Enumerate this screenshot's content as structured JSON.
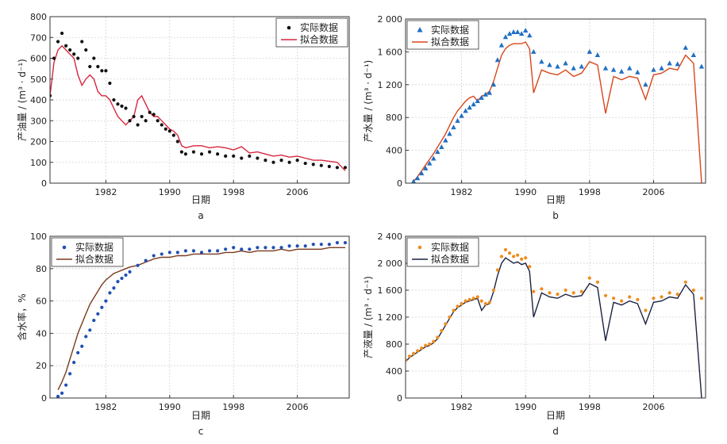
{
  "legend": {
    "actual": "实际数据",
    "fit": "拟合数据"
  },
  "x_axis_label": "日期",
  "x_tick_labels": [
    "1982",
    "1990",
    "1998",
    "2006"
  ],
  "chart_data": [
    {
      "id": "a",
      "type": "scatter",
      "panel_label": "a",
      "ylabel": "产油量 / (m³ · d⁻¹)",
      "xlabel": "日期",
      "xlim": [
        1975,
        2012.5
      ],
      "ylim": [
        0,
        800
      ],
      "y_ticks": [
        "0",
        "100",
        "200",
        "300",
        "400",
        "500",
        "600",
        "700",
        "800"
      ],
      "x_ticks": [
        1982,
        1990,
        1998,
        2006
      ],
      "grid": true,
      "legend_position": "top-right",
      "colors": {
        "actual": "#111111",
        "fit": "#d7263d"
      },
      "series": [
        {
          "name": "实际数据",
          "style": "markers",
          "marker": "dot",
          "x": [
            1975.0,
            1975.5,
            1976.0,
            1976.5,
            1977.0,
            1977.5,
            1978.0,
            1978.5,
            1979.0,
            1979.5,
            1980.0,
            1980.5,
            1981.0,
            1981.5,
            1982.0,
            1982.5,
            1983.0,
            1983.5,
            1984.0,
            1984.5,
            1985.0,
            1985.5,
            1986.0,
            1986.5,
            1987.0,
            1987.5,
            1988.0,
            1988.5,
            1989.0,
            1989.5,
            1990.0,
            1990.5,
            1991.0,
            1991.5,
            1992.0,
            1993.0,
            1994.0,
            1995.0,
            1996.0,
            1997.0,
            1998.0,
            1999.0,
            2000.0,
            2001.0,
            2002.0,
            2003.0,
            2004.0,
            2005.0,
            2006.0,
            2007.0,
            2008.0,
            2009.0,
            2010.0,
            2011.0,
            2012.0
          ],
          "y": [
            420,
            600,
            680,
            720,
            660,
            640,
            620,
            600,
            680,
            640,
            560,
            600,
            560,
            540,
            540,
            480,
            400,
            380,
            370,
            360,
            300,
            320,
            280,
            320,
            300,
            340,
            330,
            300,
            280,
            260,
            250,
            230,
            200,
            150,
            140,
            150,
            140,
            150,
            140,
            130,
            130,
            120,
            130,
            120,
            110,
            100,
            110,
            100,
            110,
            95,
            90,
            85,
            80,
            75,
            75
          ]
        },
        {
          "name": "拟合数据",
          "style": "line",
          "x": [
            1975.0,
            1975.5,
            1976.0,
            1976.5,
            1977.0,
            1977.5,
            1978.0,
            1978.5,
            1979.0,
            1979.5,
            1980.0,
            1980.5,
            1981.0,
            1981.5,
            1982.0,
            1982.5,
            1983.0,
            1983.5,
            1984.0,
            1984.5,
            1985.0,
            1985.5,
            1986.0,
            1986.5,
            1987.0,
            1987.5,
            1988.0,
            1988.5,
            1989.0,
            1989.5,
            1990.0,
            1990.5,
            1991.0,
            1991.5,
            1992.0,
            1993.0,
            1994.0,
            1995.0,
            1996.0,
            1997.0,
            1998.0,
            1999.0,
            2000.0,
            2001.0,
            2002.0,
            2003.0,
            2004.0,
            2005.0,
            2006.0,
            2007.0,
            2008.0,
            2009.0,
            2010.0,
            2011.0,
            2012.0
          ],
          "y": [
            420,
            580,
            640,
            660,
            640,
            620,
            600,
            520,
            470,
            500,
            520,
            500,
            440,
            420,
            420,
            400,
            360,
            320,
            300,
            280,
            300,
            320,
            400,
            420,
            380,
            340,
            320,
            320,
            300,
            280,
            260,
            250,
            230,
            180,
            170,
            180,
            180,
            170,
            175,
            170,
            160,
            175,
            145,
            150,
            140,
            130,
            135,
            125,
            130,
            120,
            110,
            110,
            105,
            100,
            60
          ]
        }
      ]
    },
    {
      "id": "b",
      "type": "scatter",
      "panel_label": "b",
      "ylabel": "产水量 / (m³ · d⁻¹)",
      "xlabel": "日期",
      "xlim": [
        1975,
        2012.5
      ],
      "ylim": [
        0,
        2000
      ],
      "y_ticks": [
        "0",
        "400",
        "800",
        "1 200",
        "1 600",
        "2 000"
      ],
      "x_ticks": [
        1982,
        1990,
        1998,
        2006
      ],
      "grid": true,
      "legend_position": "top-left",
      "colors": {
        "actual": "#1f6fc5",
        "fit": "#d9461b"
      },
      "series": [
        {
          "name": "实际数据",
          "style": "markers",
          "marker": "triangle",
          "x": [
            1976.0,
            1976.5,
            1977.0,
            1977.5,
            1978.0,
            1978.5,
            1979.0,
            1979.5,
            1980.0,
            1980.5,
            1981.0,
            1981.5,
            1982.0,
            1982.5,
            1983.0,
            1983.5,
            1984.0,
            1984.5,
            1985.0,
            1985.5,
            1986.0,
            1986.5,
            1987.0,
            1987.5,
            1988.0,
            1988.5,
            1989.0,
            1989.5,
            1990.0,
            1990.5,
            1991.0,
            1992.0,
            1993.0,
            1994.0,
            1995.0,
            1996.0,
            1997.0,
            1998.0,
            1999.0,
            2000.0,
            2001.0,
            2002.0,
            2003.0,
            2004.0,
            2005.0,
            2006.0,
            2007.0,
            2008.0,
            2009.0,
            2010.0,
            2011.0,
            2012.0
          ],
          "y": [
            20,
            60,
            120,
            180,
            240,
            300,
            380,
            440,
            520,
            600,
            680,
            760,
            820,
            880,
            920,
            960,
            1000,
            1040,
            1080,
            1100,
            1200,
            1500,
            1680,
            1780,
            1820,
            1840,
            1840,
            1820,
            1860,
            1800,
            1600,
            1480,
            1440,
            1420,
            1460,
            1400,
            1420,
            1600,
            1560,
            1400,
            1380,
            1360,
            1400,
            1350,
            1200,
            1380,
            1400,
            1460,
            1450,
            1650,
            1560,
            1420
          ]
        },
        {
          "name": "拟合数据",
          "style": "line",
          "x": [
            1976.0,
            1976.5,
            1977.0,
            1977.5,
            1978.0,
            1978.5,
            1979.0,
            1979.5,
            1980.0,
            1980.5,
            1981.0,
            1981.5,
            1982.0,
            1982.5,
            1983.0,
            1983.5,
            1984.0,
            1984.5,
            1985.0,
            1985.5,
            1986.0,
            1986.5,
            1987.0,
            1987.5,
            1988.0,
            1988.5,
            1989.0,
            1989.5,
            1990.0,
            1990.5,
            1991.0,
            1992.0,
            1993.0,
            1994.0,
            1995.0,
            1996.0,
            1997.0,
            1998.0,
            1999.0,
            2000.0,
            2001.0,
            2002.0,
            2003.0,
            2004.0,
            2005.0,
            2006.0,
            2007.0,
            2008.0,
            2009.0,
            2010.0,
            2011.0,
            2012.0
          ],
          "y": [
            20,
            80,
            150,
            220,
            290,
            360,
            440,
            520,
            600,
            700,
            800,
            880,
            940,
            1000,
            1040,
            1060,
            1000,
            1060,
            1080,
            1120,
            1240,
            1400,
            1560,
            1640,
            1680,
            1700,
            1700,
            1700,
            1720,
            1640,
            1100,
            1380,
            1340,
            1320,
            1380,
            1300,
            1340,
            1480,
            1440,
            850,
            1300,
            1260,
            1300,
            1280,
            1020,
            1320,
            1340,
            1400,
            1380,
            1560,
            1460,
            0
          ]
        }
      ]
    },
    {
      "id": "c",
      "type": "scatter",
      "panel_label": "c",
      "ylabel": "含水率，%",
      "xlabel": "日期",
      "xlim": [
        1975,
        2012.5
      ],
      "ylim": [
        0,
        100
      ],
      "y_ticks": [
        "0",
        "20",
        "40",
        "60",
        "80",
        "100"
      ],
      "x_ticks": [
        1982,
        1990,
        1998,
        2006
      ],
      "grid": true,
      "legend_position": "top-left",
      "colors": {
        "actual": "#1f4fb5",
        "fit": "#7a3b1e"
      },
      "series": [
        {
          "name": "实际数据",
          "style": "markers",
          "marker": "dot",
          "x": [
            1976.0,
            1976.5,
            1977.0,
            1977.5,
            1978.0,
            1978.5,
            1979.0,
            1979.5,
            1980.0,
            1980.5,
            1981.0,
            1981.5,
            1982.0,
            1982.5,
            1983.0,
            1983.5,
            1984.0,
            1984.5,
            1985.0,
            1986.0,
            1987.0,
            1988.0,
            1989.0,
            1990.0,
            1991.0,
            1992.0,
            1993.0,
            1994.0,
            1995.0,
            1996.0,
            1997.0,
            1998.0,
            1999.0,
            2000.0,
            2001.0,
            2002.0,
            2003.0,
            2004.0,
            2005.0,
            2006.0,
            2007.0,
            2008.0,
            2009.0,
            2010.0,
            2011.0,
            2012.0
          ],
          "y": [
            1,
            3,
            8,
            15,
            22,
            28,
            32,
            38,
            42,
            48,
            52,
            56,
            60,
            65,
            68,
            72,
            74,
            76,
            78,
            82,
            85,
            88,
            89,
            90,
            90,
            91,
            91,
            90,
            91,
            91,
            92,
            93,
            92,
            92,
            93,
            93,
            93,
            93,
            94,
            94,
            94,
            95,
            95,
            95,
            96,
            96
          ]
        },
        {
          "name": "拟合数据",
          "style": "line",
          "x": [
            1976.0,
            1976.5,
            1977.0,
            1977.5,
            1978.0,
            1978.5,
            1979.0,
            1979.5,
            1980.0,
            1980.5,
            1981.0,
            1981.5,
            1982.0,
            1982.5,
            1983.0,
            1983.5,
            1984.0,
            1984.5,
            1985.0,
            1986.0,
            1987.0,
            1988.0,
            1989.0,
            1990.0,
            1991.0,
            1992.0,
            1993.0,
            1994.0,
            1995.0,
            1996.0,
            1997.0,
            1998.0,
            1999.0,
            2000.0,
            2001.0,
            2002.0,
            2003.0,
            2004.0,
            2005.0,
            2006.0,
            2007.0,
            2008.0,
            2009.0,
            2010.0,
            2011.0,
            2012.0
          ],
          "y": [
            5,
            10,
            16,
            24,
            32,
            40,
            46,
            52,
            58,
            62,
            66,
            70,
            73,
            75,
            77,
            78,
            79,
            80,
            81,
            82,
            84,
            86,
            87,
            87,
            88,
            88,
            89,
            89,
            89,
            89,
            90,
            90,
            91,
            90,
            91,
            91,
            91,
            92,
            91,
            92,
            92,
            92,
            92,
            93,
            93,
            93
          ]
        }
      ]
    },
    {
      "id": "d",
      "type": "scatter",
      "panel_label": "d",
      "ylabel": "产液量 / (m³ · d⁻¹)",
      "xlabel": "日期",
      "xlim": [
        1975,
        2012.5
      ],
      "ylim": [
        0,
        2400
      ],
      "y_ticks": [
        "0",
        "400",
        "800",
        "1 200",
        "1 600",
        "2 000",
        "2 400"
      ],
      "x_ticks": [
        1982,
        1990,
        1998,
        2006
      ],
      "grid": true,
      "legend_position": "top-left",
      "colors": {
        "actual": "#f08c1a",
        "fit": "#1c2340"
      },
      "series": [
        {
          "name": "实际数据",
          "style": "markers",
          "marker": "dot",
          "x": [
            1975.0,
            1975.5,
            1976.0,
            1976.5,
            1977.0,
            1977.5,
            1978.0,
            1978.5,
            1979.0,
            1979.5,
            1980.0,
            1980.5,
            1981.0,
            1981.5,
            1982.0,
            1982.5,
            1983.0,
            1983.5,
            1984.0,
            1984.5,
            1985.0,
            1985.5,
            1986.0,
            1986.5,
            1987.0,
            1987.5,
            1988.0,
            1988.5,
            1989.0,
            1989.5,
            1990.0,
            1990.5,
            1991.0,
            1992.0,
            1993.0,
            1994.0,
            1995.0,
            1996.0,
            1997.0,
            1998.0,
            1999.0,
            2000.0,
            2001.0,
            2002.0,
            2003.0,
            2004.0,
            2005.0,
            2006.0,
            2007.0,
            2008.0,
            2009.0,
            2010.0,
            2011.0,
            2012.0
          ],
          "y": [
            560,
            620,
            660,
            700,
            740,
            780,
            800,
            840,
            900,
            1000,
            1100,
            1200,
            1300,
            1360,
            1400,
            1440,
            1460,
            1480,
            1500,
            1440,
            1400,
            1420,
            1600,
            1900,
            2100,
            2200,
            2150,
            2100,
            2120,
            2060,
            2080,
            1950,
            1580,
            1620,
            1560,
            1540,
            1600,
            1560,
            1580,
            1780,
            1720,
            1520,
            1480,
            1440,
            1500,
            1460,
            1300,
            1480,
            1500,
            1560,
            1540,
            1720,
            1600,
            1480
          ]
        },
        {
          "name": "拟合数据",
          "style": "line",
          "x": [
            1975.0,
            1975.5,
            1976.0,
            1976.5,
            1977.0,
            1977.5,
            1978.0,
            1978.5,
            1979.0,
            1979.5,
            1980.0,
            1980.5,
            1981.0,
            1981.5,
            1982.0,
            1982.5,
            1983.0,
            1983.5,
            1984.0,
            1984.5,
            1985.0,
            1985.5,
            1986.0,
            1986.5,
            1987.0,
            1987.5,
            1988.0,
            1988.5,
            1989.0,
            1989.5,
            1990.0,
            1990.5,
            1991.0,
            1992.0,
            1993.0,
            1994.0,
            1995.0,
            1996.0,
            1997.0,
            1998.0,
            1999.0,
            2000.0,
            2001.0,
            2002.0,
            2003.0,
            2004.0,
            2005.0,
            2006.0,
            2007.0,
            2008.0,
            2009.0,
            2010.0,
            2011.0,
            2012.0
          ],
          "y": [
            540,
            600,
            640,
            680,
            720,
            760,
            780,
            820,
            880,
            980,
            1080,
            1180,
            1280,
            1340,
            1380,
            1420,
            1440,
            1460,
            1480,
            1300,
            1380,
            1400,
            1580,
            1820,
            2000,
            2080,
            2040,
            2000,
            2020,
            1980,
            2000,
            1880,
            1200,
            1560,
            1500,
            1480,
            1540,
            1500,
            1520,
            1700,
            1640,
            850,
            1420,
            1380,
            1440,
            1400,
            1100,
            1420,
            1440,
            1500,
            1480,
            1680,
            1540,
            0
          ]
        }
      ]
    }
  ]
}
